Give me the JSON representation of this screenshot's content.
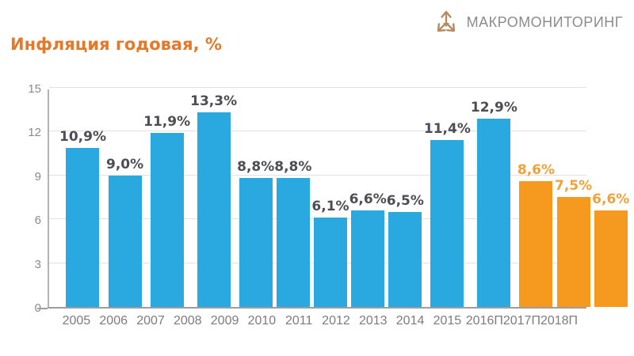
{
  "header": {
    "logo_text": "МАКРОМОНИТОРИНГ"
  },
  "chart_data": {
    "type": "bar",
    "title": "Инфляция годовая, %",
    "xlabel": "",
    "ylabel": "",
    "ylim": [
      0,
      15
    ],
    "yticks": [
      0,
      3,
      6,
      9,
      12,
      15
    ],
    "grid": true,
    "legend_position": "none",
    "categories": [
      "2005",
      "2006",
      "2007",
      "2008",
      "2009",
      "2010",
      "2011",
      "2012",
      "2013",
      "2014",
      "2015",
      "2016П",
      "2017П",
      "2018П"
    ],
    "values": [
      10.9,
      9.0,
      11.9,
      13.3,
      8.8,
      8.8,
      6.1,
      6.6,
      6.5,
      11.4,
      12.9,
      8.6,
      7.5,
      6.6
    ],
    "value_labels": [
      "10,9%",
      "9,0%",
      "11,9%",
      "13,3%",
      "8,8%",
      "8,8%",
      "6,1%",
      "6,6%",
      "6,5%",
      "11,4%",
      "12,9%",
      "8,6%",
      "7,5%",
      "6,6%"
    ],
    "point_types": [
      "actual",
      "actual",
      "actual",
      "actual",
      "actual",
      "actual",
      "actual",
      "actual",
      "actual",
      "actual",
      "actual",
      "forecast",
      "forecast",
      "forecast"
    ],
    "colors": {
      "actual_bar": "#29a9e0",
      "forecast_bar": "#f6991f",
      "actual_label": "#4d4d55",
      "forecast_label": "#f2a136",
      "title": "#e2792b",
      "logo_icon": "#b98a5f",
      "logo_text": "#8c8c8c"
    }
  }
}
